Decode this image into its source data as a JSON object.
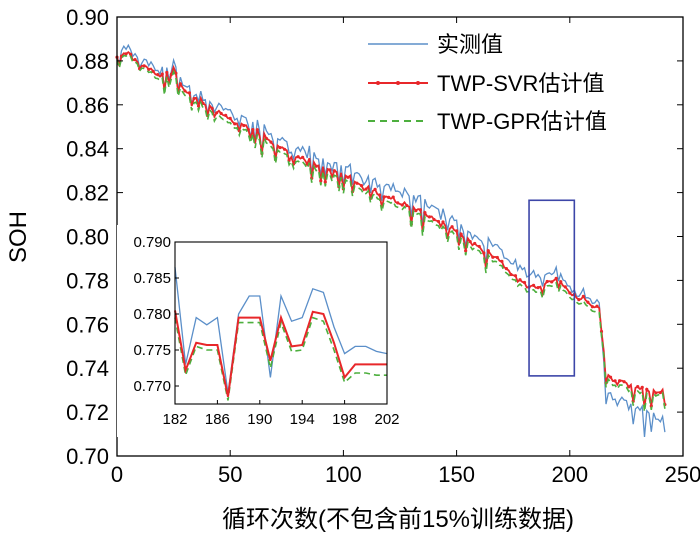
{
  "chart_data": {
    "type": "line",
    "xlabel": "循环次数(不包含前15%训练数据)",
    "ylabel": "SOH",
    "xlim": [
      0,
      250
    ],
    "ylim": [
      0.7,
      0.9
    ],
    "xticks": [
      0,
      50,
      100,
      150,
      200,
      250
    ],
    "yticks": [
      0.7,
      0.72,
      0.74,
      0.76,
      0.78,
      0.8,
      0.82,
      0.84,
      0.86,
      0.88,
      0.9
    ],
    "grid": false,
    "legend_position": "top-right",
    "colors": {
      "actual": "#5b8fc9",
      "svr": "#e8272a",
      "gpr": "#4daf3e",
      "box": "#3d46a8"
    },
    "series": [
      {
        "name": "实测值",
        "style": "solid",
        "x": [
          0,
          5,
          10,
          20,
          25,
          30,
          40,
          50,
          60,
          70,
          80,
          90,
          100,
          110,
          120,
          130,
          140,
          150,
          160,
          170,
          175,
          180,
          185,
          190,
          195,
          200,
          205,
          210,
          213,
          216,
          220,
          225,
          230,
          235,
          240,
          242
        ],
        "values": [
          0.882,
          0.887,
          0.88,
          0.875,
          0.879,
          0.868,
          0.862,
          0.856,
          0.852,
          0.845,
          0.84,
          0.836,
          0.833,
          0.826,
          0.823,
          0.818,
          0.813,
          0.806,
          0.799,
          0.793,
          0.788,
          0.784,
          0.781,
          0.783,
          0.784,
          0.776,
          0.774,
          0.771,
          0.77,
          0.729,
          0.726,
          0.724,
          0.722,
          0.72,
          0.718,
          0.721
        ]
      },
      {
        "name": "TWP-SVR估计值",
        "style": "solid-marker",
        "x": [
          0,
          5,
          10,
          20,
          25,
          30,
          40,
          50,
          60,
          70,
          80,
          90,
          100,
          110,
          120,
          130,
          140,
          150,
          160,
          170,
          175,
          180,
          185,
          190,
          195,
          200,
          205,
          210,
          213,
          216,
          220,
          225,
          230,
          235,
          240,
          242
        ],
        "values": [
          0.881,
          0.884,
          0.878,
          0.873,
          0.876,
          0.866,
          0.86,
          0.853,
          0.849,
          0.842,
          0.836,
          0.832,
          0.829,
          0.822,
          0.818,
          0.813,
          0.808,
          0.802,
          0.795,
          0.788,
          0.782,
          0.778,
          0.776,
          0.779,
          0.78,
          0.774,
          0.772,
          0.769,
          0.768,
          0.737,
          0.734,
          0.733,
          0.731,
          0.73,
          0.73,
          0.731
        ]
      },
      {
        "name": "TWP-GPR估计值",
        "style": "dashed",
        "x": [
          0,
          5,
          10,
          20,
          25,
          30,
          40,
          50,
          60,
          70,
          80,
          90,
          100,
          110,
          120,
          130,
          140,
          150,
          160,
          170,
          175,
          180,
          185,
          190,
          195,
          200,
          205,
          210,
          213,
          216,
          220,
          225,
          230,
          235,
          240,
          242
        ],
        "values": [
          0.88,
          0.883,
          0.877,
          0.871,
          0.874,
          0.864,
          0.858,
          0.851,
          0.847,
          0.84,
          0.834,
          0.83,
          0.827,
          0.82,
          0.816,
          0.811,
          0.806,
          0.8,
          0.793,
          0.786,
          0.78,
          0.776,
          0.774,
          0.777,
          0.778,
          0.772,
          0.77,
          0.767,
          0.766,
          0.735,
          0.732,
          0.731,
          0.729,
          0.728,
          0.729,
          0.729
        ]
      }
    ],
    "highlight_box": {
      "x": [
        182,
        202
      ],
      "y": [
        0.7365,
        0.8165
      ]
    },
    "inset": {
      "xlim": [
        182,
        202
      ],
      "ylim": [
        0.7675,
        0.79
      ],
      "xticks": [
        182,
        186,
        190,
        194,
        198,
        202
      ],
      "yticks": [
        "0.770",
        "0.775",
        "0.780",
        "0.785",
        "0.790"
      ],
      "ytick_values": [
        0.77,
        0.775,
        0.78,
        0.785,
        0.79
      ],
      "x": [
        182,
        183,
        184,
        185,
        186,
        187,
        188,
        189,
        190,
        191,
        192,
        193,
        194,
        195,
        196,
        197,
        198,
        199,
        200,
        201,
        202
      ],
      "actual": [
        0.7865,
        0.773,
        0.7795,
        0.7785,
        0.7795,
        0.769,
        0.78,
        0.7825,
        0.7825,
        0.7712,
        0.7825,
        0.779,
        0.7795,
        0.7835,
        0.783,
        0.7782,
        0.7745,
        0.7755,
        0.7755,
        0.7748,
        0.7745
      ],
      "svr": [
        0.7805,
        0.7722,
        0.776,
        0.7757,
        0.7757,
        0.7685,
        0.7795,
        0.7795,
        0.7795,
        0.7735,
        0.7795,
        0.7755,
        0.7757,
        0.7803,
        0.78,
        0.776,
        0.7712,
        0.773,
        0.773,
        0.773,
        0.773
      ],
      "gpr": [
        0.7795,
        0.7715,
        0.7755,
        0.775,
        0.775,
        0.768,
        0.7788,
        0.7788,
        0.7788,
        0.7725,
        0.7788,
        0.7748,
        0.775,
        0.7795,
        0.779,
        0.775,
        0.7705,
        0.7718,
        0.7718,
        0.7715,
        0.7715
      ]
    }
  }
}
